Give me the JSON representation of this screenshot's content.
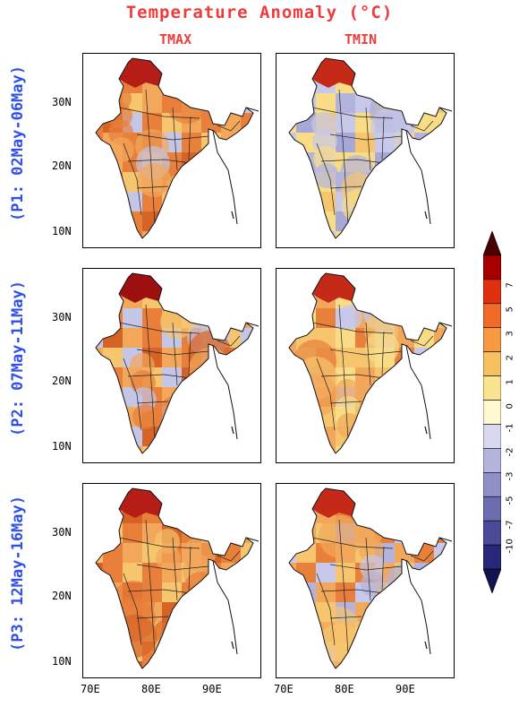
{
  "title": "Temperature Anomaly (°C)",
  "columns": [
    {
      "label": "TMAX"
    },
    {
      "label": "TMIN"
    }
  ],
  "rows": [
    {
      "label": "(P1: 02May-06May)"
    },
    {
      "label": "(P2: 07May-11May)"
    },
    {
      "label": "(P3: 12May-16May)"
    }
  ],
  "lat_ticks": [
    "30N",
    "20N",
    "10N"
  ],
  "lon_ticks": [
    "70E",
    "80E",
    "90E"
  ],
  "colorbar": {
    "labels": [
      "7",
      "5",
      "3",
      "2",
      "1",
      "0",
      "-1",
      "-2",
      "-3",
      "-5",
      "-7",
      "-10"
    ],
    "colors": [
      "#4a0000",
      "#a80000",
      "#e03010",
      "#f06a28",
      "#f59a40",
      "#f7c060",
      "#fae490",
      "#fff8d0",
      "#d8d8ee",
      "#b4b4dc",
      "#9090c8",
      "#6c6cb0",
      "#4a4a98",
      "#28287a",
      "#121250"
    ]
  },
  "panels": [
    {
      "row": 0,
      "col": 0,
      "palette": [
        "#e87f3a",
        "#f2a75a",
        "#f6c56d",
        "#e87f3a",
        "#c5c5e6",
        "#d56326",
        "#e87f3a",
        "#f2a75a"
      ],
      "north": "#b51d16"
    },
    {
      "row": 0,
      "col": 1,
      "palette": [
        "#f8dc86",
        "#c8c8ea",
        "#b3b3dc",
        "#f8dc86",
        "#c8c8ea",
        "#f6c56d",
        "#a8a8d6",
        "#f8dc86"
      ],
      "north": "#c52a18"
    },
    {
      "row": 1,
      "col": 0,
      "palette": [
        "#c5c5e6",
        "#f6c56d",
        "#f2a75a",
        "#e87f3a",
        "#c5c5e6",
        "#e87f3a",
        "#f2a75a",
        "#d56326"
      ],
      "north": "#9c1010"
    },
    {
      "row": 1,
      "col": 1,
      "palette": [
        "#f6c56d",
        "#f2a75a",
        "#f8dc86",
        "#f2a75a",
        "#c8c8ea",
        "#e87f3a",
        "#f8dc86",
        "#f6c56d"
      ],
      "north": "#c52a18"
    },
    {
      "row": 2,
      "col": 0,
      "palette": [
        "#f2a75a",
        "#e87f3a",
        "#f6c56d",
        "#e87f3a",
        "#d56326",
        "#f2a75a",
        "#e87f3a",
        "#f6c56d"
      ],
      "north": "#b51d16"
    },
    {
      "row": 2,
      "col": 1,
      "palette": [
        "#f2a75a",
        "#e87f3a",
        "#f6c56d",
        "#c8c8ea",
        "#e87f3a",
        "#f2a75a",
        "#b3b3dc",
        "#f6c56d"
      ],
      "north": "#c52a18"
    }
  ]
}
